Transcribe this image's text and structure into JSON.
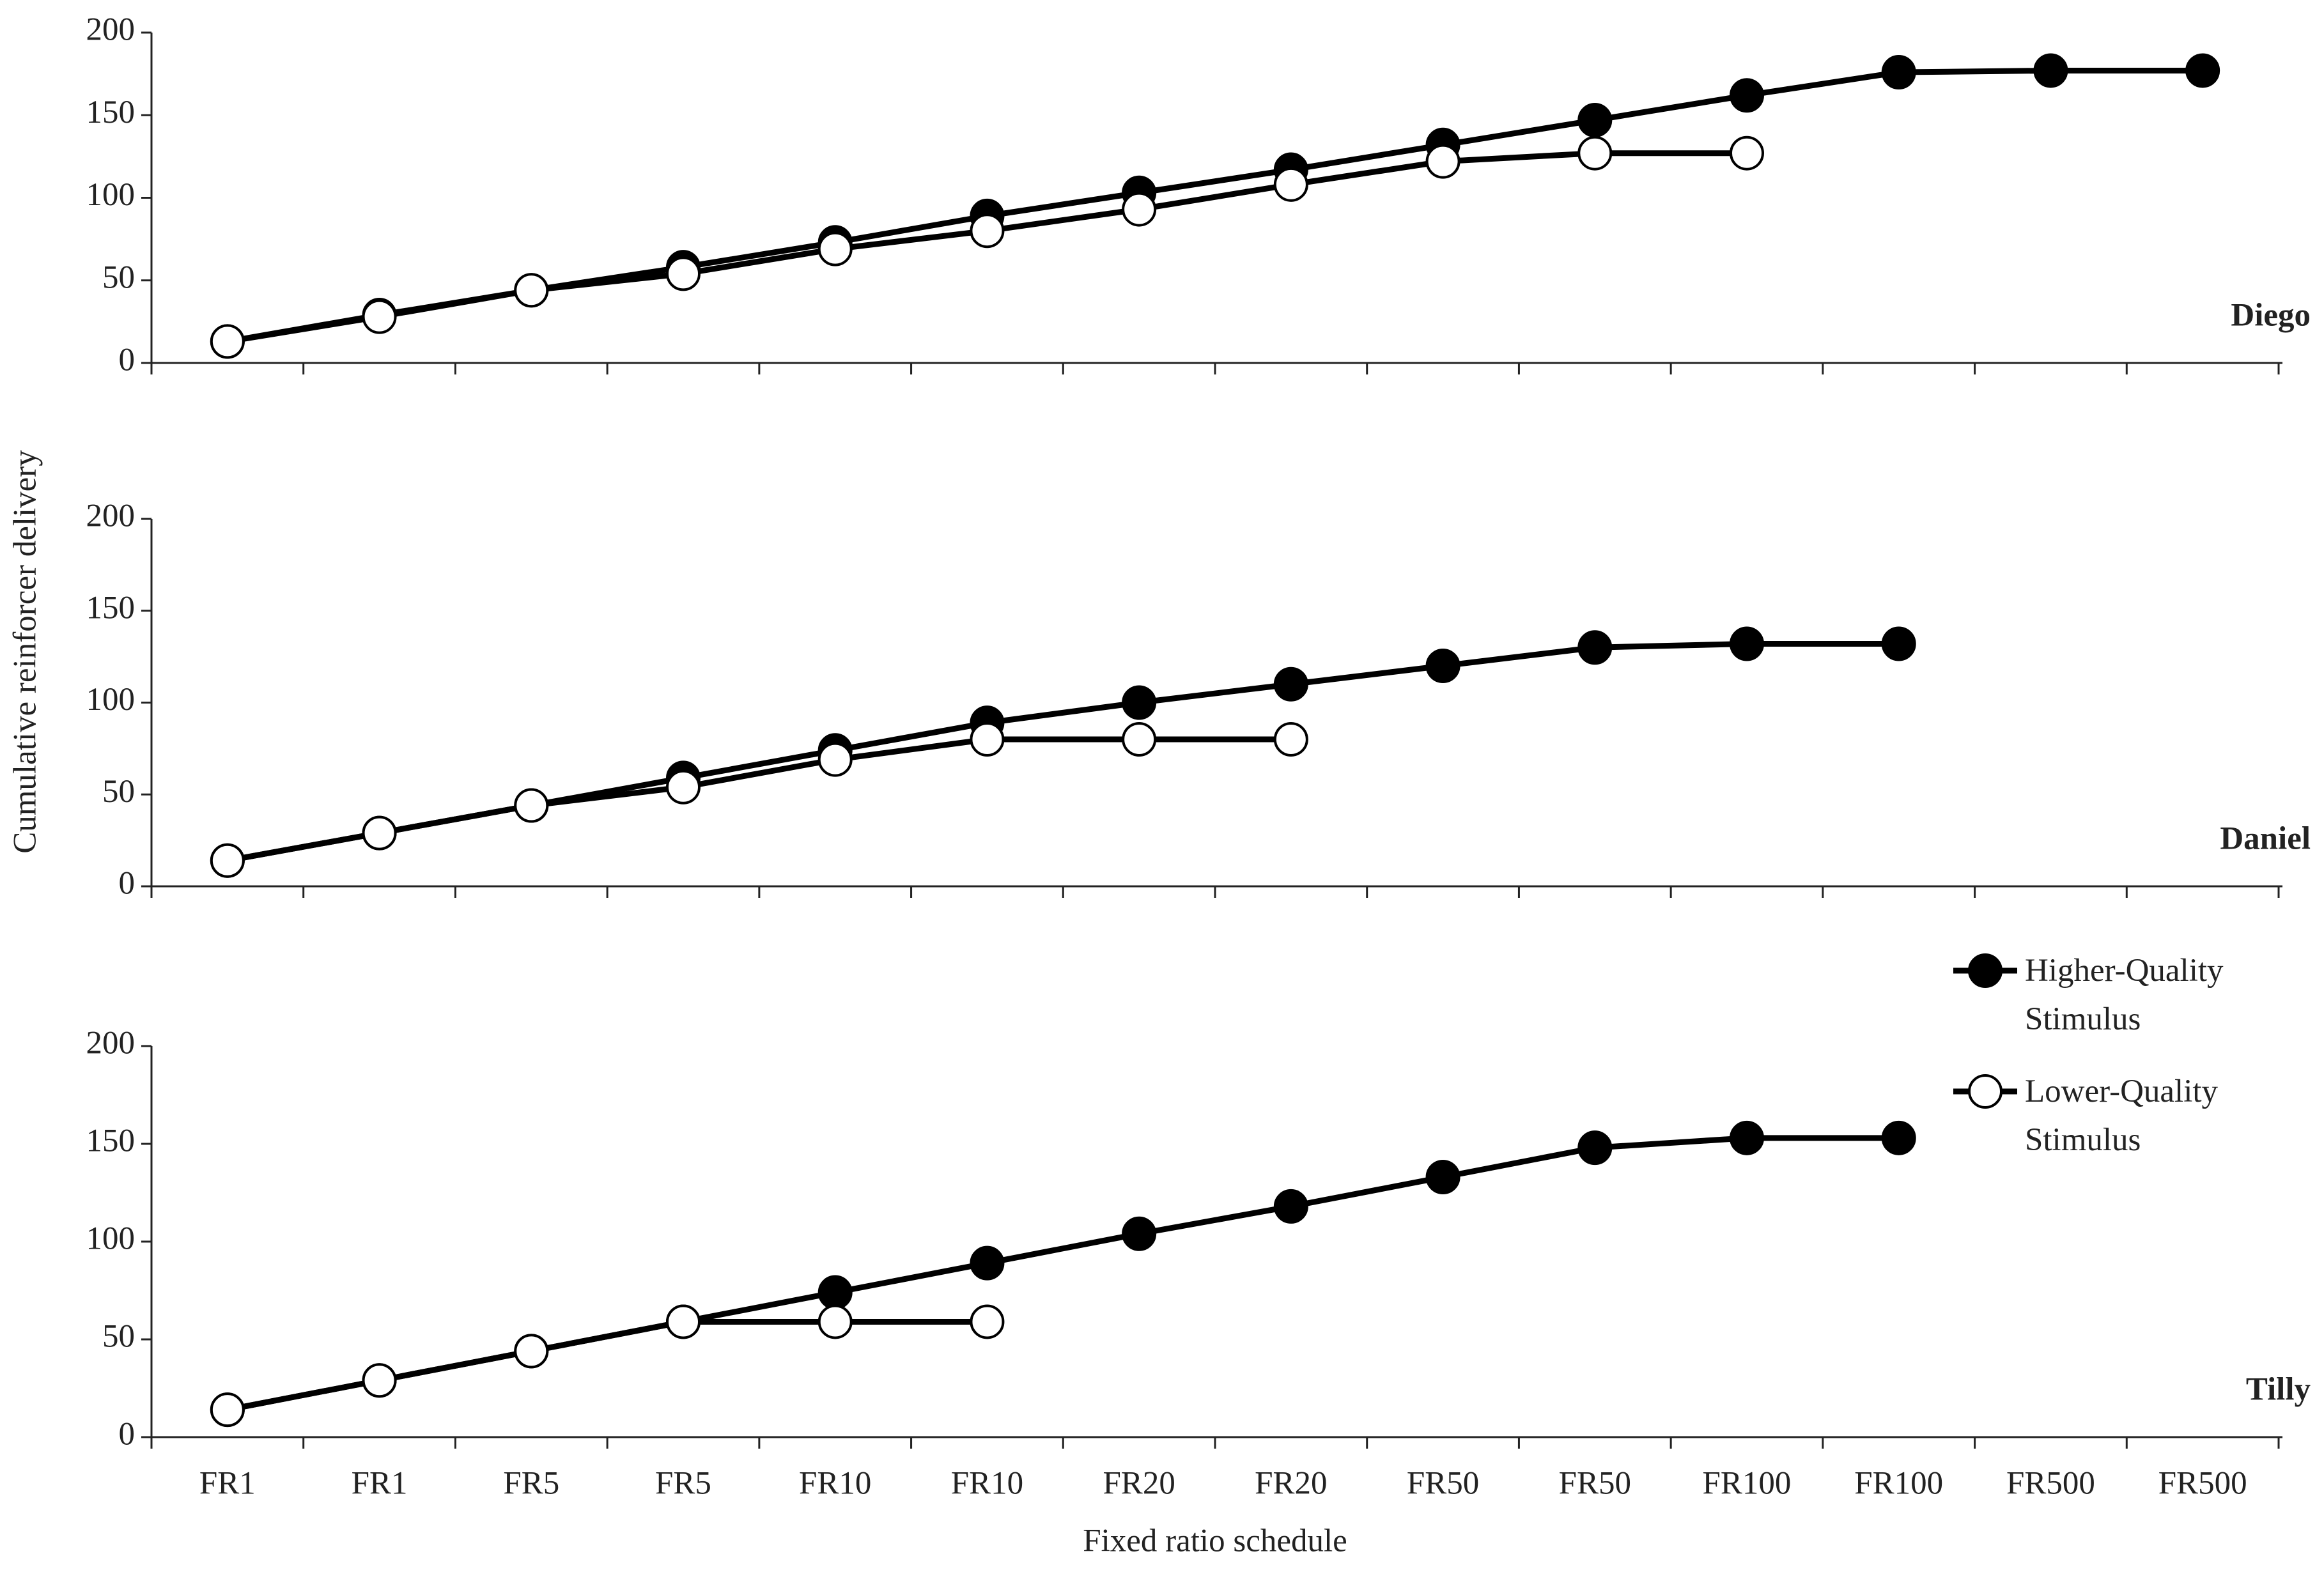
{
  "chart_data": [
    {
      "type": "line",
      "title": "Diego",
      "ylim": [
        0,
        200
      ],
      "yticks": [
        0,
        50,
        100,
        150,
        200
      ],
      "grid": false,
      "series": [
        {
          "color": "#000000",
          "marker_fill": "#000000",
          "values": [
            13,
            29,
            44,
            58,
            73,
            89,
            103,
            117,
            132,
            147,
            162,
            176,
            177,
            177
          ]
        },
        {
          "color": "#000000",
          "marker_fill": "#ffffff",
          "values": [
            13,
            28,
            44,
            54,
            69,
            80,
            93,
            108,
            122,
            127,
            127,
            null,
            null,
            null
          ]
        }
      ]
    },
    {
      "type": "line",
      "title": "Daniel",
      "y_label": "Cumulative reinforcer delivery",
      "ylim": [
        0,
        200
      ],
      "yticks": [
        0,
        50,
        100,
        150,
        200
      ],
      "grid": false,
      "series": [
        {
          "color": "#000000",
          "marker_fill": "#000000",
          "values": [
            14,
            29,
            44,
            59,
            74,
            89,
            100,
            110,
            120,
            130,
            132,
            132,
            null,
            null
          ]
        },
        {
          "color": "#000000",
          "marker_fill": "#ffffff",
          "values": [
            14,
            29,
            44,
            54,
            69,
            80,
            80,
            80,
            null,
            null,
            null,
            null,
            null,
            null
          ]
        }
      ]
    },
    {
      "type": "line",
      "title": "Tilly",
      "x_label": "Fixed ratio schedule",
      "ylim": [
        0,
        200
      ],
      "yticks": [
        0,
        50,
        100,
        150,
        200
      ],
      "grid": false,
      "legend": "right",
      "categories": [
        "FR1",
        "FR1",
        "FR5",
        "FR5",
        "FR10",
        "FR10",
        "FR20",
        "FR20",
        "FR50",
        "FR50",
        "FR100",
        "FR100",
        "FR500",
        "FR500"
      ],
      "series": [
        {
          "name": "Higher-Quality Stimulus",
          "color": "#000000",
          "marker_fill": "#000000",
          "values": [
            14,
            29,
            44,
            59,
            74,
            89,
            104,
            118,
            133,
            148,
            153,
            153,
            null,
            null
          ]
        },
        {
          "name": "Lower-Quality Stimulus",
          "color": "#000000",
          "marker_fill": "#ffffff",
          "values": [
            14,
            29,
            44,
            59,
            59,
            59,
            null,
            null,
            null,
            null,
            null,
            null,
            null,
            null
          ]
        }
      ]
    }
  ]
}
